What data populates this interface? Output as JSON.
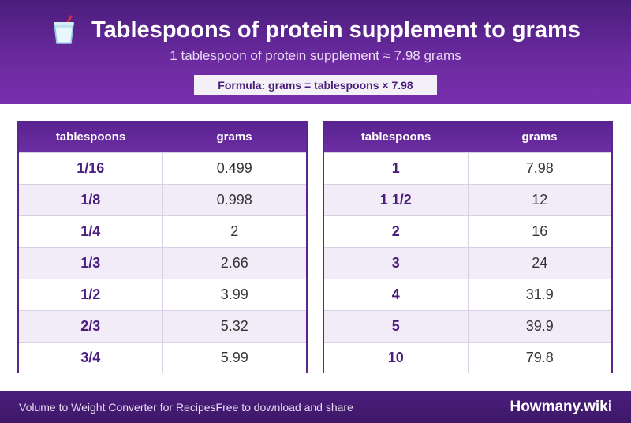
{
  "header": {
    "title": "Tablespoons of protein supplement to grams",
    "subtitle": "1 tablespoon of protein supplement ≈ 7.98 grams",
    "formula": "Formula: grams = tablespoons × 7.98",
    "icon": "cup-with-straw-icon"
  },
  "tables": [
    {
      "headers": [
        "tablespoons",
        "grams"
      ],
      "rows": [
        {
          "tablespoons": "1/16",
          "grams": "0.499"
        },
        {
          "tablespoons": "1/8",
          "grams": "0.998"
        },
        {
          "tablespoons": "1/4",
          "grams": "2"
        },
        {
          "tablespoons": "1/3",
          "grams": "2.66"
        },
        {
          "tablespoons": "1/2",
          "grams": "3.99"
        },
        {
          "tablespoons": "2/3",
          "grams": "5.32"
        },
        {
          "tablespoons": "3/4",
          "grams": "5.99"
        }
      ]
    },
    {
      "headers": [
        "tablespoons",
        "grams"
      ],
      "rows": [
        {
          "tablespoons": "1",
          "grams": "7.98"
        },
        {
          "tablespoons": "1 1/2",
          "grams": "12"
        },
        {
          "tablespoons": "2",
          "grams": "16"
        },
        {
          "tablespoons": "3",
          "grams": "24"
        },
        {
          "tablespoons": "4",
          "grams": "31.9"
        },
        {
          "tablespoons": "5",
          "grams": "39.9"
        },
        {
          "tablespoons": "10",
          "grams": "79.8"
        }
      ]
    }
  ],
  "footer": {
    "left_text": "Volume to Weight Converter for Recipes",
    "middle_text": "Free to download and share",
    "brand": "Howmany.wiki"
  },
  "colors": {
    "header_purple": "#5b2590",
    "accent_text": "#4a1d7c",
    "row_alt": "#f1ecf8"
  }
}
